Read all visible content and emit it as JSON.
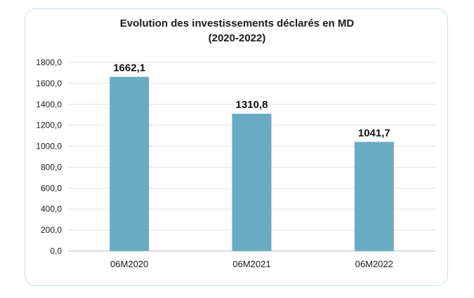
{
  "chart_data": {
    "type": "bar",
    "title": "Evolution des investissements déclarés en MD",
    "subtitle": "(2020-2022)",
    "xlabel": "",
    "ylabel": "",
    "categories": [
      "06M2020",
      "06M2021",
      "06M2022"
    ],
    "values": [
      1662.1,
      1310.8,
      1041.7
    ],
    "data_labels": [
      "1662,1",
      "1310,8",
      "1041,7"
    ],
    "ylim": [
      0,
      1800
    ],
    "yticks": [
      0,
      200,
      400,
      600,
      800,
      1000,
      1200,
      1400,
      1600,
      1800
    ],
    "ytick_labels": [
      "0,0",
      "200,0",
      "400,0",
      "600,0",
      "800,0",
      "1000,0",
      "1200,0",
      "1400,0",
      "1600,0",
      "1800,0"
    ],
    "grid": true,
    "legend": "none",
    "bar_color": "#6aabc4",
    "grid_color": "#e2e2e2"
  }
}
